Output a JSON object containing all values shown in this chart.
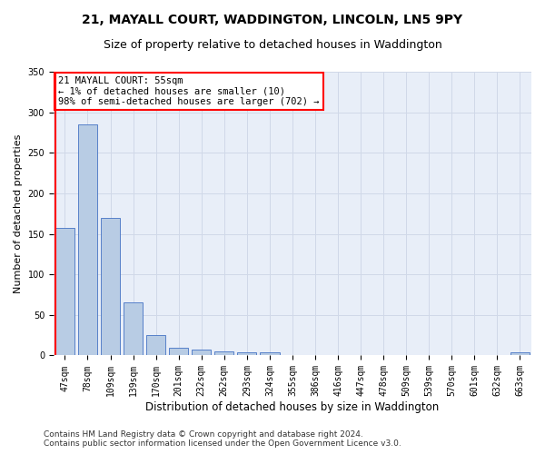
{
  "title": "21, MAYALL COURT, WADDINGTON, LINCOLN, LN5 9PY",
  "subtitle": "Size of property relative to detached houses in Waddington",
  "xlabel": "Distribution of detached houses by size in Waddington",
  "ylabel": "Number of detached properties",
  "categories": [
    "47sqm",
    "78sqm",
    "109sqm",
    "139sqm",
    "170sqm",
    "201sqm",
    "232sqm",
    "262sqm",
    "293sqm",
    "324sqm",
    "355sqm",
    "386sqm",
    "416sqm",
    "447sqm",
    "478sqm",
    "509sqm",
    "539sqm",
    "570sqm",
    "601sqm",
    "632sqm",
    "663sqm"
  ],
  "values": [
    157,
    285,
    170,
    65,
    25,
    9,
    7,
    5,
    4,
    4,
    0,
    0,
    0,
    0,
    0,
    0,
    0,
    0,
    0,
    0,
    4
  ],
  "bar_color": "#b8cce4",
  "bar_edge_color": "#4472c4",
  "highlight_line_color": "#ff0000",
  "annotation_text": "21 MAYALL COURT: 55sqm\n← 1% of detached houses are smaller (10)\n98% of semi-detached houses are larger (702) →",
  "annotation_box_color": "#ffffff",
  "annotation_box_edge_color": "#ff0000",
  "ylim": [
    0,
    350
  ],
  "yticks": [
    0,
    50,
    100,
    150,
    200,
    250,
    300,
    350
  ],
  "grid_color": "#d0d8e8",
  "plot_bg_color": "#e8eef8",
  "fig_bg_color": "#ffffff",
  "footer_line1": "Contains HM Land Registry data © Crown copyright and database right 2024.",
  "footer_line2": "Contains public sector information licensed under the Open Government Licence v3.0.",
  "title_fontsize": 10,
  "subtitle_fontsize": 9,
  "ylabel_fontsize": 8,
  "xlabel_fontsize": 8.5,
  "tick_fontsize": 7,
  "footer_fontsize": 6.5,
  "annotation_fontsize": 7.5
}
